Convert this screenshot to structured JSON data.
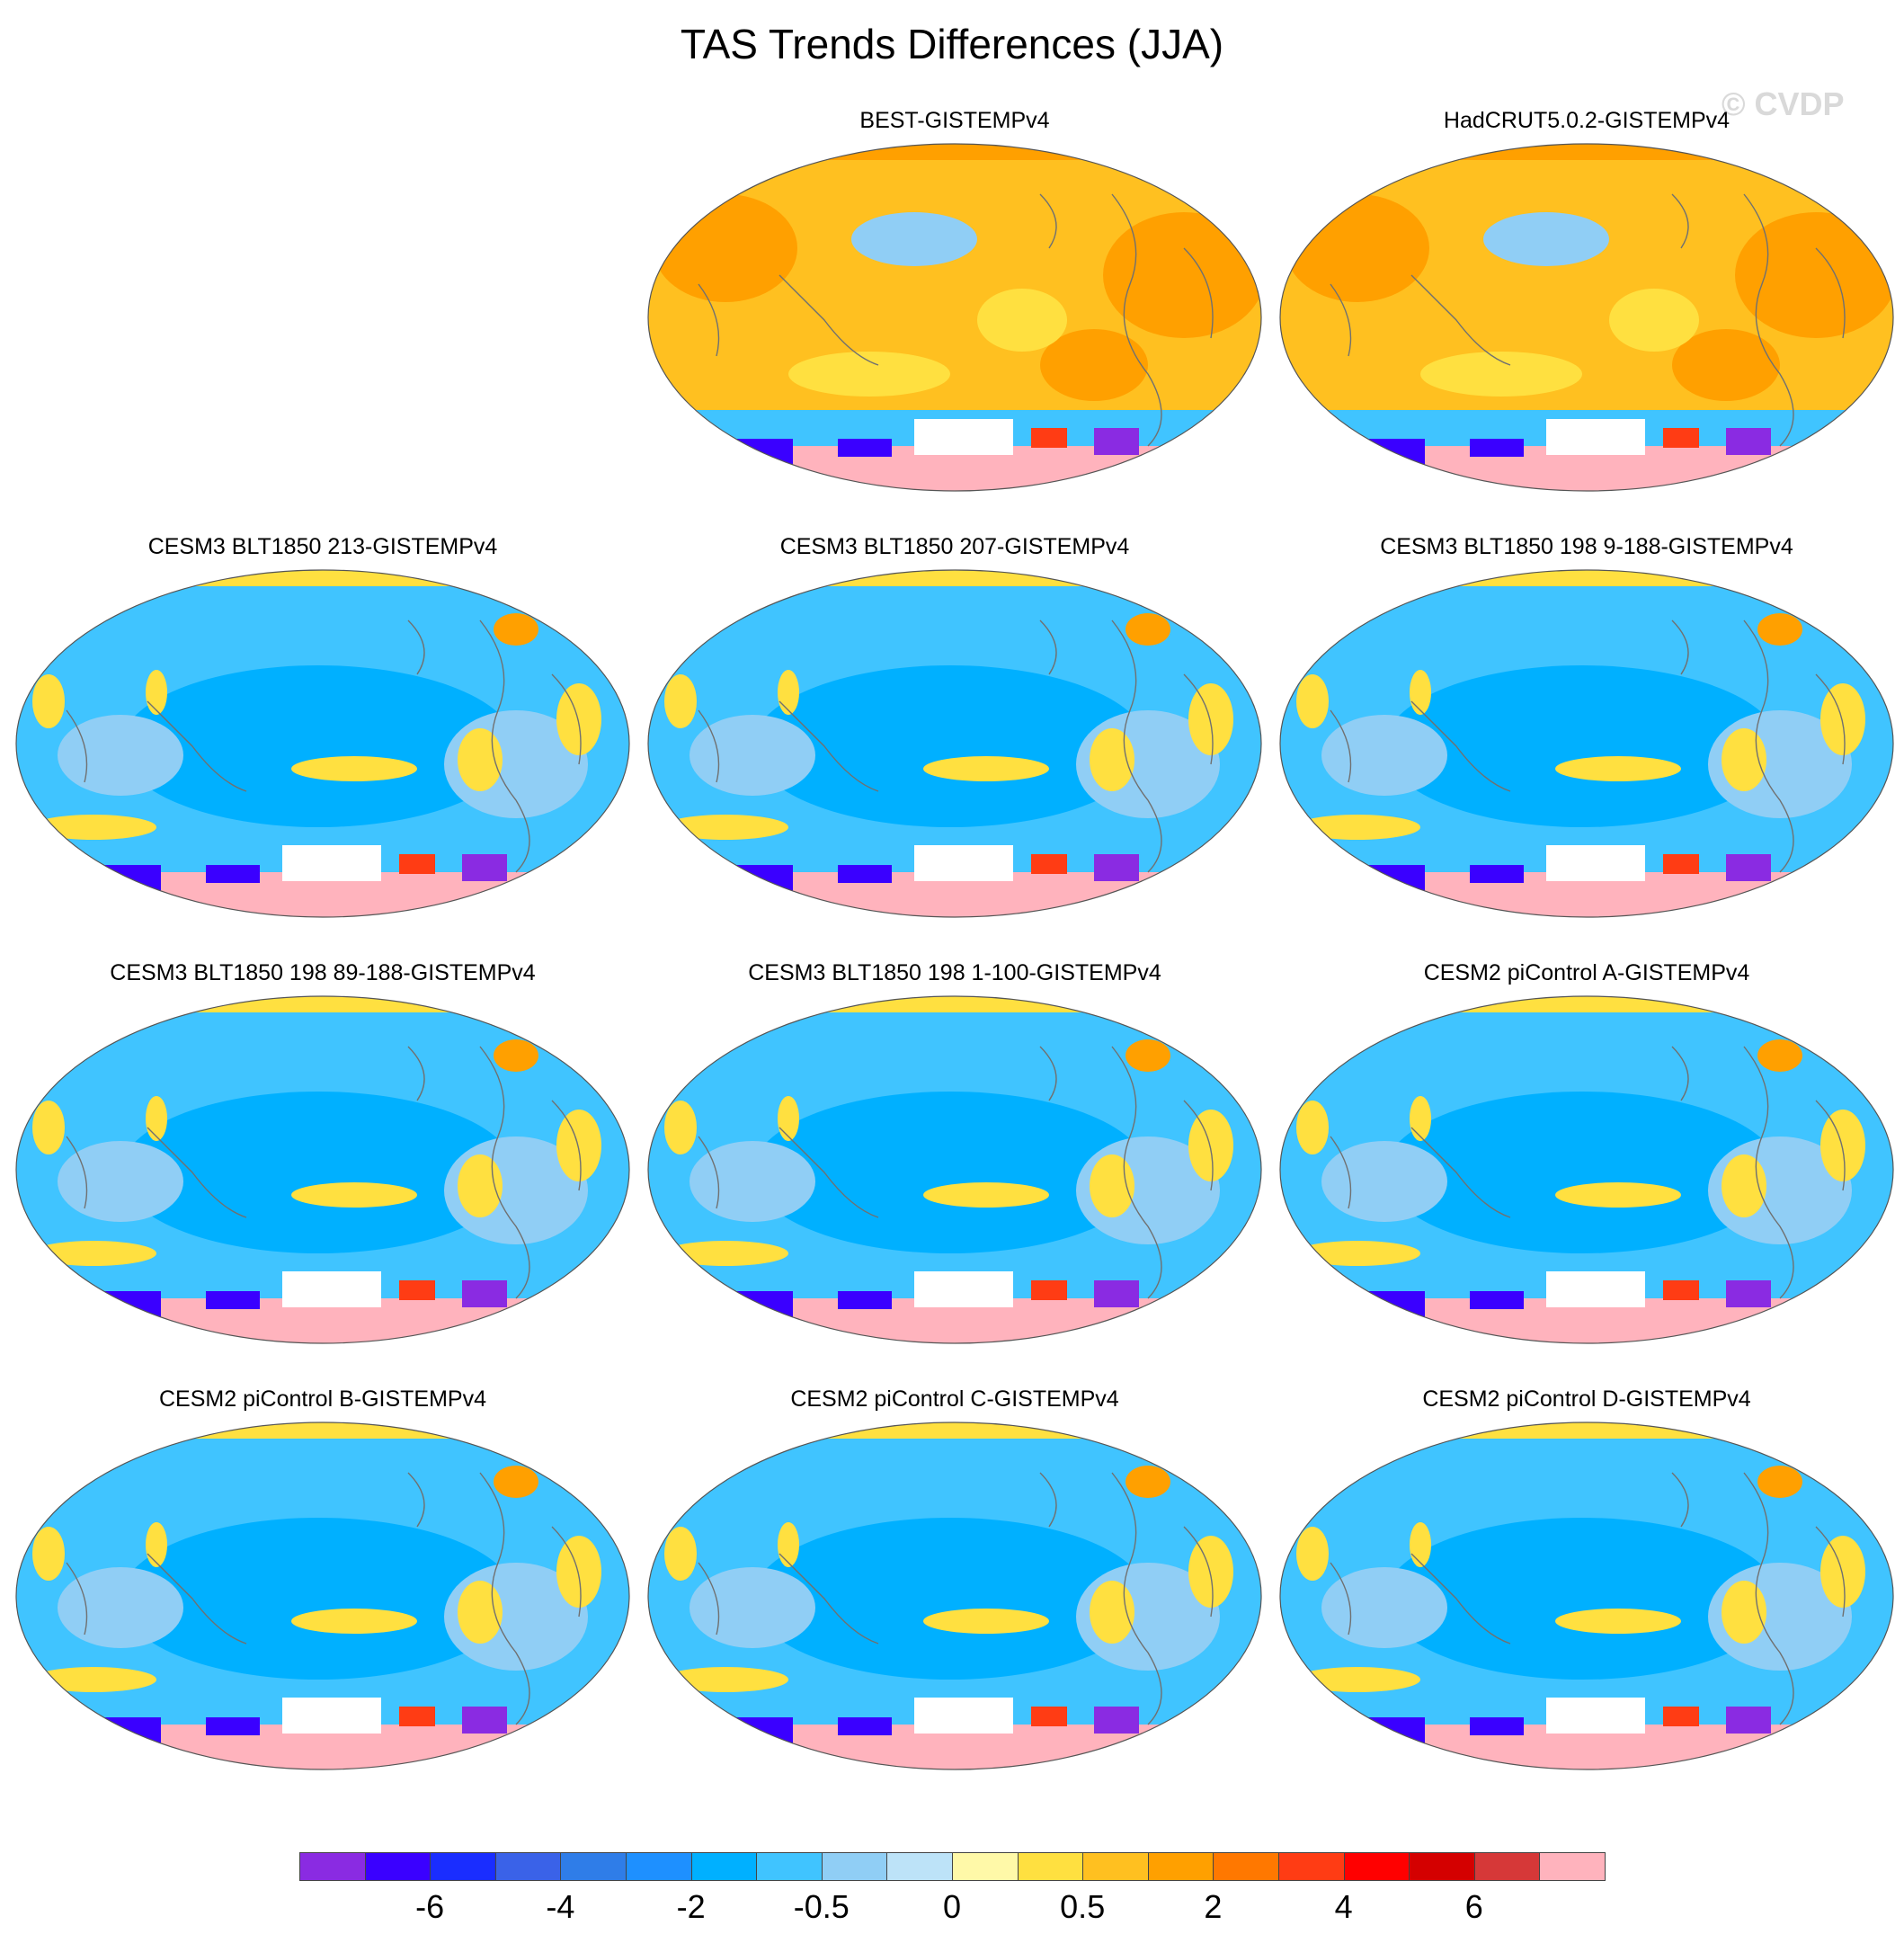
{
  "figure": {
    "title": "TAS Trends Differences (JJA)",
    "watermark": "© CVDP"
  },
  "panels": [
    {
      "title": "BEST-GISTEMPv4",
      "palette": "warm",
      "position": "row1-col2"
    },
    {
      "title": "HadCRUT5.0.2-GISTEMPv4",
      "palette": "warm",
      "position": "row1-col3"
    },
    {
      "title": "CESM3 BLT1850 213-GISTEMPv4",
      "palette": "cool",
      "position": "row2-col1"
    },
    {
      "title": "CESM3 BLT1850 207-GISTEMPv4",
      "palette": "cool",
      "position": "row2-col2"
    },
    {
      "title": "CESM3 BLT1850 198 9-188-GISTEMPv4",
      "palette": "cool",
      "position": "row2-col3"
    },
    {
      "title": "CESM3 BLT1850 198 89-188-GISTEMPv4",
      "palette": "cool",
      "position": "row3-col1"
    },
    {
      "title": "CESM3 BLT1850 198 1-100-GISTEMPv4",
      "palette": "cool",
      "position": "row3-col2"
    },
    {
      "title": "CESM2 piControl A-GISTEMPv4",
      "palette": "cool",
      "position": "row3-col3"
    },
    {
      "title": "CESM2 piControl B-GISTEMPv4",
      "palette": "cool",
      "position": "row4-col1"
    },
    {
      "title": "CESM2 piControl C-GISTEMPv4",
      "palette": "cool",
      "position": "row4-col2"
    },
    {
      "title": "CESM2 piControl D-GISTEMPv4",
      "palette": "cool",
      "position": "row4-col3"
    }
  ],
  "colorbar": {
    "colors": [
      "#8a2be2",
      "#3a00ff",
      "#1a2dff",
      "#3a62e8",
      "#2f7de8",
      "#1e90ff",
      "#00b0ff",
      "#40c4ff",
      "#90cef5",
      "#bde3f8",
      "#fff9a8",
      "#ffe040",
      "#ffc020",
      "#ffa000",
      "#ff7800",
      "#ff3c14",
      "#ff0000",
      "#d40000",
      "#d63838",
      "#ffb3bd"
    ],
    "tick_labels": [
      "-6",
      "-4",
      "-2",
      "-0.5",
      "0",
      "0.5",
      "2",
      "4",
      "6"
    ]
  },
  "map_colors": {
    "warm_base": "#ffc020",
    "warm_strong": "#ffa000",
    "cool_base": "#40c4ff",
    "cool_light": "#90cef5",
    "cool_strong": "#00b0ff",
    "yellow": "#ffe040",
    "antarctic_pink": "#ffb3bd",
    "antarctic_blue": "#3a00ff",
    "antarctic_purple": "#8a2be2",
    "missing": "#ffffff",
    "coastline": "#707070"
  }
}
